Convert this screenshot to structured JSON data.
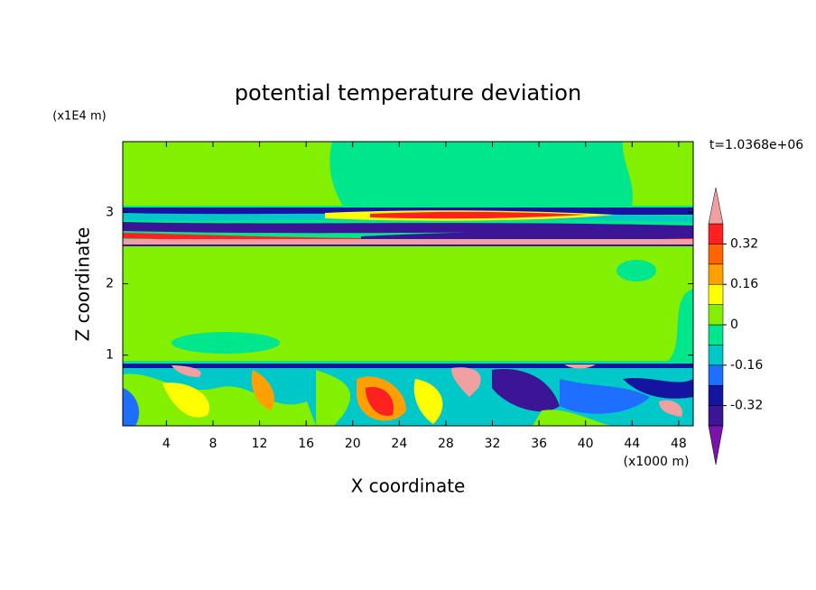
{
  "chart_data": {
    "type": "contour",
    "title": "potential temperature deviation",
    "time_label": "t=1.0368e+06",
    "x_label": "X coordinate",
    "y_label": "Z coordinate",
    "x_unit": "(x1000 m)",
    "y_unit": "(x1E4 m)",
    "xlim": [
      0.25,
      49.25
    ],
    "ylim": [
      0.01,
      3.99
    ],
    "xticks": [
      4,
      8,
      12,
      16,
      20,
      24,
      28,
      32,
      36,
      40,
      44,
      48
    ],
    "yticks": [
      1,
      2,
      3
    ],
    "colorbar": {
      "levels": [
        -0.4,
        -0.32,
        -0.24,
        -0.16,
        -0.08,
        0,
        0.08,
        0.16,
        0.24,
        0.32,
        0.4
      ],
      "colors": [
        "#7a14a8",
        "#3c1496",
        "#1414a0",
        "#1e6eff",
        "#00c8c8",
        "#00e68c",
        "#82f000",
        "#ffff00",
        "#ffa000",
        "#ff6400",
        "#ff2020",
        "#f0a0a0"
      ],
      "ticks": [
        -0.32,
        -0.16,
        0,
        0.16,
        0.32
      ]
    }
  }
}
